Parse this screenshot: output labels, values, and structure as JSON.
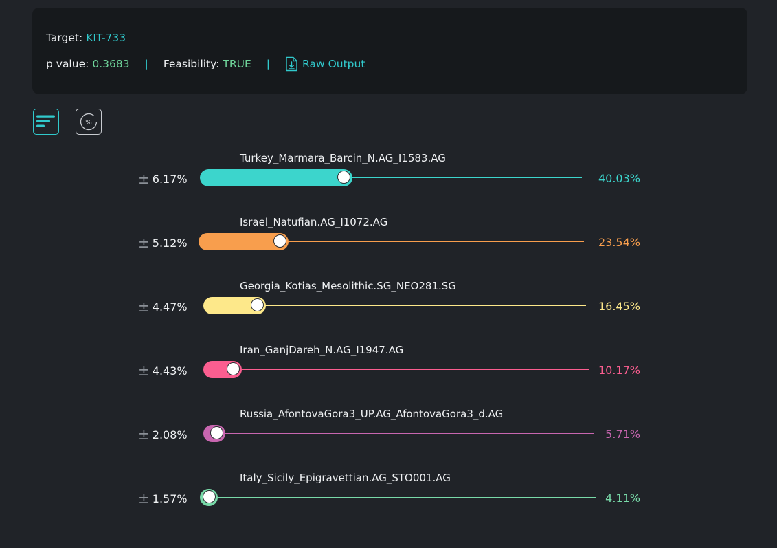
{
  "summary": {
    "target_label": "Target:",
    "target_value": "KIT-733",
    "pvalue_label": "p value:",
    "pvalue_value": "0.3683",
    "separator": "|",
    "feasibility_label": "Feasibility:",
    "feasibility_value": "TRUE",
    "raw_output_label": "Raw Output"
  },
  "toolbar": {
    "bar_view_icon": "bar-chart-icon",
    "percent_view_icon": "percent-circle-icon",
    "percent_symbol": "%"
  },
  "rows": [
    {
      "name": "Turkey_Marmara_Barcin_N.AG_I1583.AG",
      "error_sign": "±",
      "error": "6.17%",
      "percent": "40.03%",
      "value": 40.03,
      "color": "#3cd5cc"
    },
    {
      "name": "Israel_Natufian.AG_I1072.AG",
      "error_sign": "±",
      "error": "5.12%",
      "percent": "23.54%",
      "value": 23.54,
      "color": "#f89e4d"
    },
    {
      "name": "Georgia_Kotias_Mesolithic.SG_NEO281.SG",
      "error_sign": "±",
      "error": "4.47%",
      "percent": "16.45%",
      "value": 16.45,
      "color": "#fde88a"
    },
    {
      "name": "Iran_GanjDareh_N.AG_I1947.AG",
      "error_sign": "±",
      "error": "4.43%",
      "percent": "10.17%",
      "value": 10.17,
      "color": "#fb5e90"
    },
    {
      "name": "Russia_AfontovaGora3_UP.AG_AfontovaGora3_d.AG",
      "error_sign": "±",
      "error": "2.08%",
      "percent": "5.71%",
      "value": 5.71,
      "color": "#c866b0"
    },
    {
      "name": "Italy_Sicily_Epigravettian.AG_STO001.AG",
      "error_sign": "±",
      "error": "1.57%",
      "percent": "4.11%",
      "value": 4.11,
      "color": "#78d9a8"
    }
  ]
}
